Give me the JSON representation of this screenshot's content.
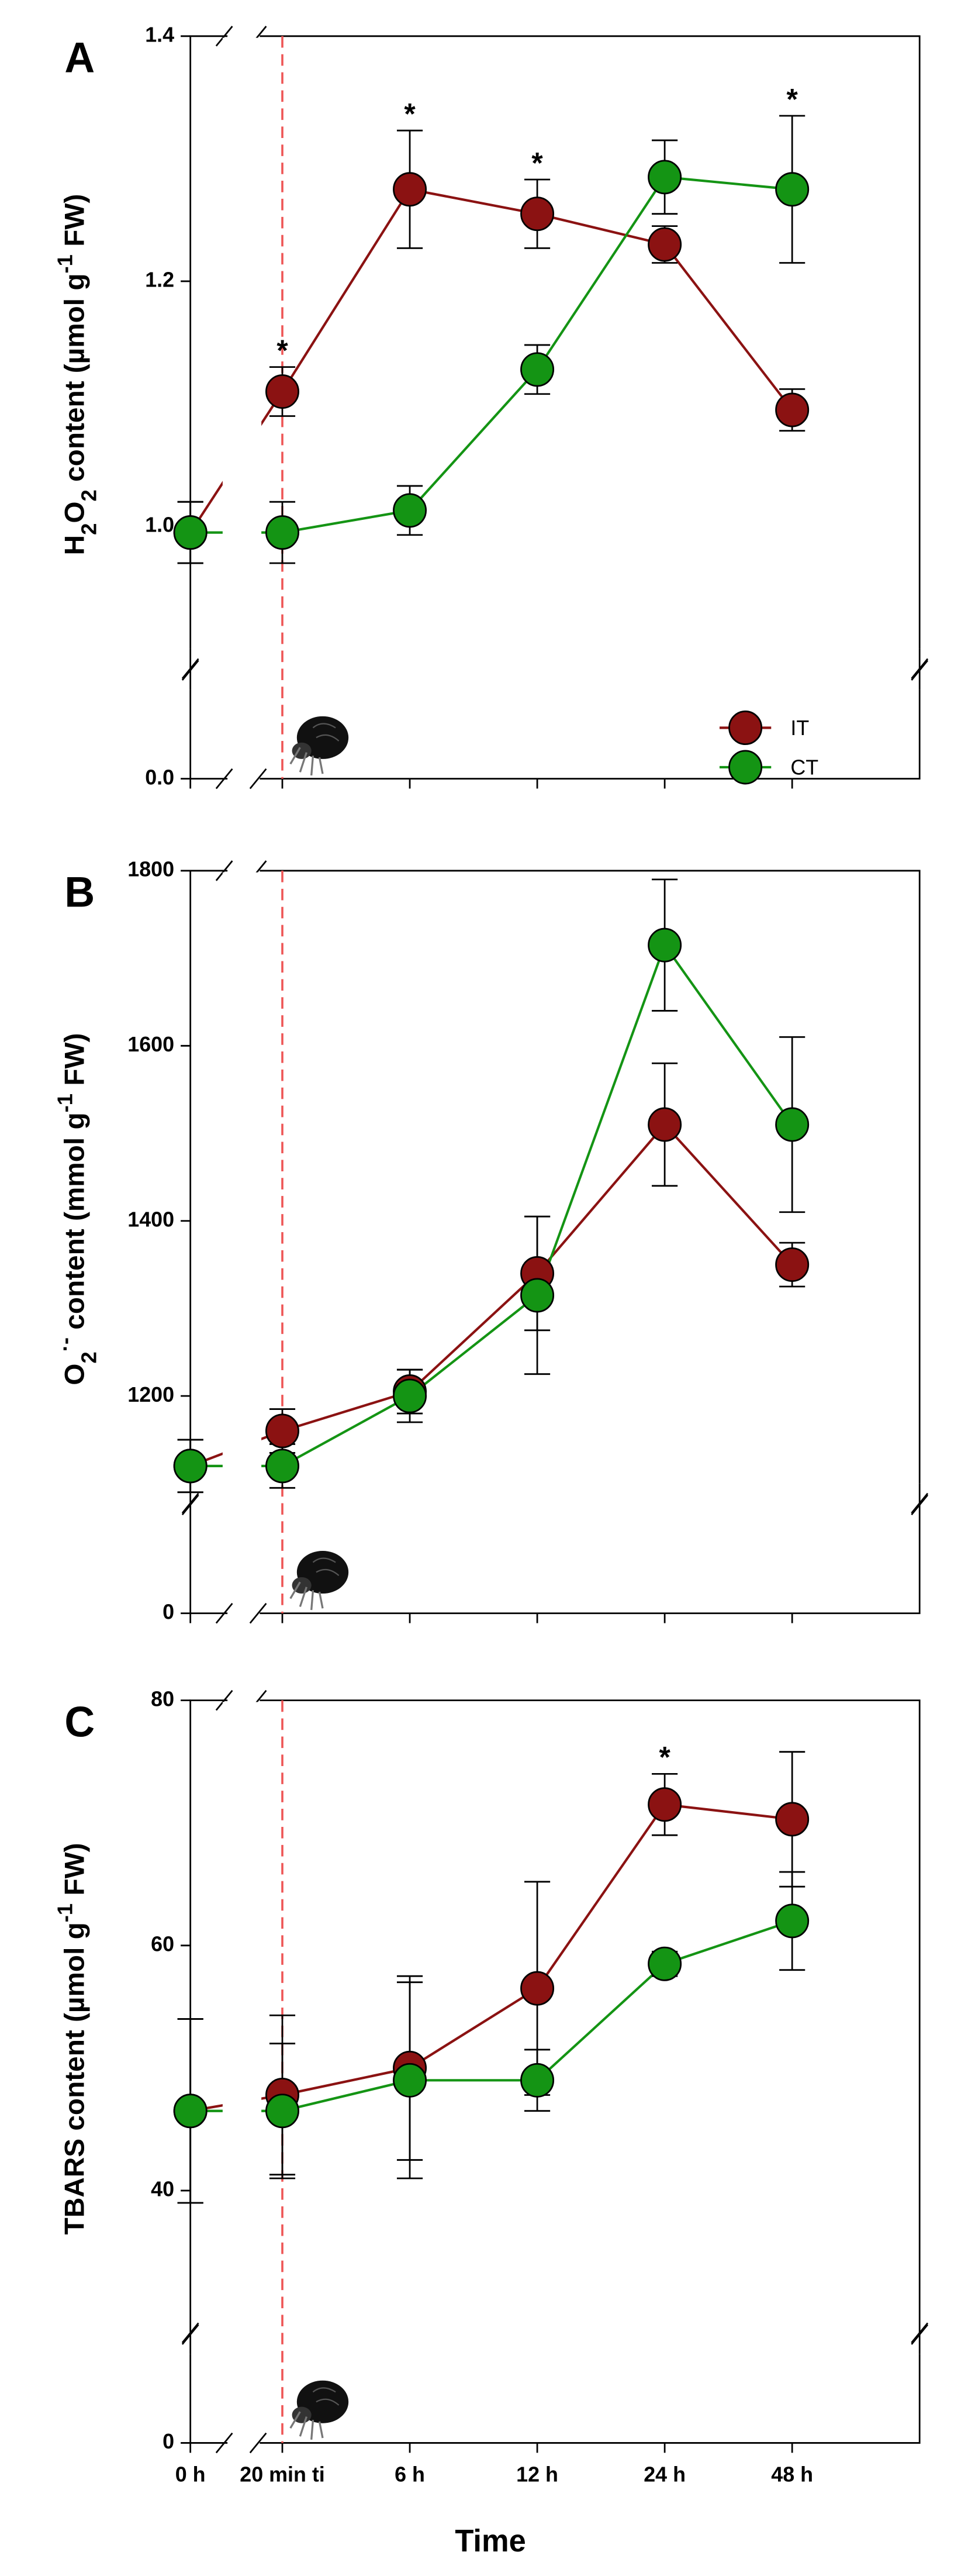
{
  "chart_data": [
    {
      "type": "line",
      "panel": "A",
      "ylabel": [
        {
          "text": "H",
          "pos": "base"
        },
        {
          "text": "2",
          "pos": "sub"
        },
        {
          "text": "O",
          "pos": "base"
        },
        {
          "text": "2",
          "pos": "sub"
        },
        {
          "text": "  content (µmol g",
          "pos": "base"
        },
        {
          "text": "-1",
          "pos": "sup"
        },
        {
          "text": " FW)",
          "pos": "base"
        }
      ],
      "categories": [
        "0 h",
        "20 min ti",
        "6 h",
        "12 h",
        "24 h",
        "48 h"
      ],
      "ylim": [
        0.9,
        1.4
      ],
      "ylim_break": [
        0,
        0.07
      ],
      "yticks": [
        {
          "value": 1,
          "label": "1.0"
        },
        1.2,
        1.4
      ],
      "yticks_break": [
        {
          "value": 0,
          "label": "0.0"
        }
      ],
      "series": [
        {
          "name": "IT",
          "color": "#8b1212",
          "values": [
            0.995,
            1.11,
            1.275,
            1.255,
            1.23,
            1.095
          ],
          "errors": [
            0.025,
            0.02,
            0.048,
            0.028,
            0.015,
            0.017
          ]
        },
        {
          "name": "CT",
          "color": "#149414",
          "values": [
            0.995,
            0.995,
            1.013,
            1.128,
            1.285,
            1.275
          ],
          "errors": [
            0.025,
            0.025,
            0.02,
            0.02,
            0.03,
            0.06
          ]
        }
      ],
      "significance": [
        {
          "x": "20 min ti",
          "text": "*"
        },
        {
          "x": "6 h",
          "text": "*"
        },
        {
          "x": "12 h",
          "text": "*"
        },
        {
          "x": "48 h",
          "text": "*"
        }
      ],
      "legend": "lower right"
    },
    {
      "type": "line",
      "panel": "B",
      "ylabel": [
        {
          "text": "O",
          "pos": "base"
        },
        {
          "text": "2",
          "pos": "sub"
        },
        {
          "text": "·-",
          "pos": "sup"
        },
        {
          "text": " content (mmol g",
          "pos": "base"
        },
        {
          "text": "-1",
          "pos": "sup"
        },
        {
          "text": " FW)",
          "pos": "base"
        }
      ],
      "categories": [
        "0 h",
        "20 min ti",
        "6 h",
        "12 h",
        "24 h",
        "48 h"
      ],
      "ylim": [
        1100,
        1800
      ],
      "ylim_break": [
        0,
        100
      ],
      "yticks": [
        1200,
        1400,
        1600,
        1800
      ],
      "yticks_break": [
        0
      ],
      "series": [
        {
          "name": "IT",
          "color": "#8b1212",
          "values": [
            1120,
            1160,
            1205,
            1340,
            1510,
            1350
          ],
          "errors": [
            30,
            25,
            25,
            65,
            70,
            25
          ]
        },
        {
          "name": "CT",
          "color": "#149414",
          "values": [
            1120,
            1120,
            1200,
            1315,
            1715,
            1510
          ],
          "errors": [
            30,
            25,
            30,
            90,
            75,
            100
          ]
        }
      ],
      "significance": []
    },
    {
      "type": "line",
      "panel": "C",
      "ylabel": [
        {
          "text": "TBARS content (µmol g",
          "pos": "base"
        },
        {
          "text": "-1",
          "pos": "sup"
        },
        {
          "text": " FW)",
          "pos": "base"
        }
      ],
      "categories": [
        "0 h",
        "20 min ti",
        "6 h",
        "12 h",
        "24 h",
        "48 h"
      ],
      "xlabel": "Time",
      "ylim": [
        30,
        80
      ],
      "ylim_break": [
        0,
        8
      ],
      "yticks": [
        40,
        60,
        80
      ],
      "yticks_break": [
        0
      ],
      "series": [
        {
          "name": "IT",
          "color": "#8b1212",
          "values": [
            46.5,
            47.8,
            50,
            56.5,
            71.5,
            70.3
          ],
          "errors": [
            7.5,
            6.5,
            7.5,
            8.7,
            2.5,
            5.5
          ]
        },
        {
          "name": "CT",
          "color": "#149414",
          "values": [
            46.5,
            46.5,
            49,
            49,
            58.5,
            62
          ],
          "errors": [
            7.5,
            5.5,
            8,
            2.5,
            1,
            4
          ]
        }
      ],
      "significance": [
        {
          "x": "24 h",
          "text": "*"
        }
      ]
    }
  ]
}
